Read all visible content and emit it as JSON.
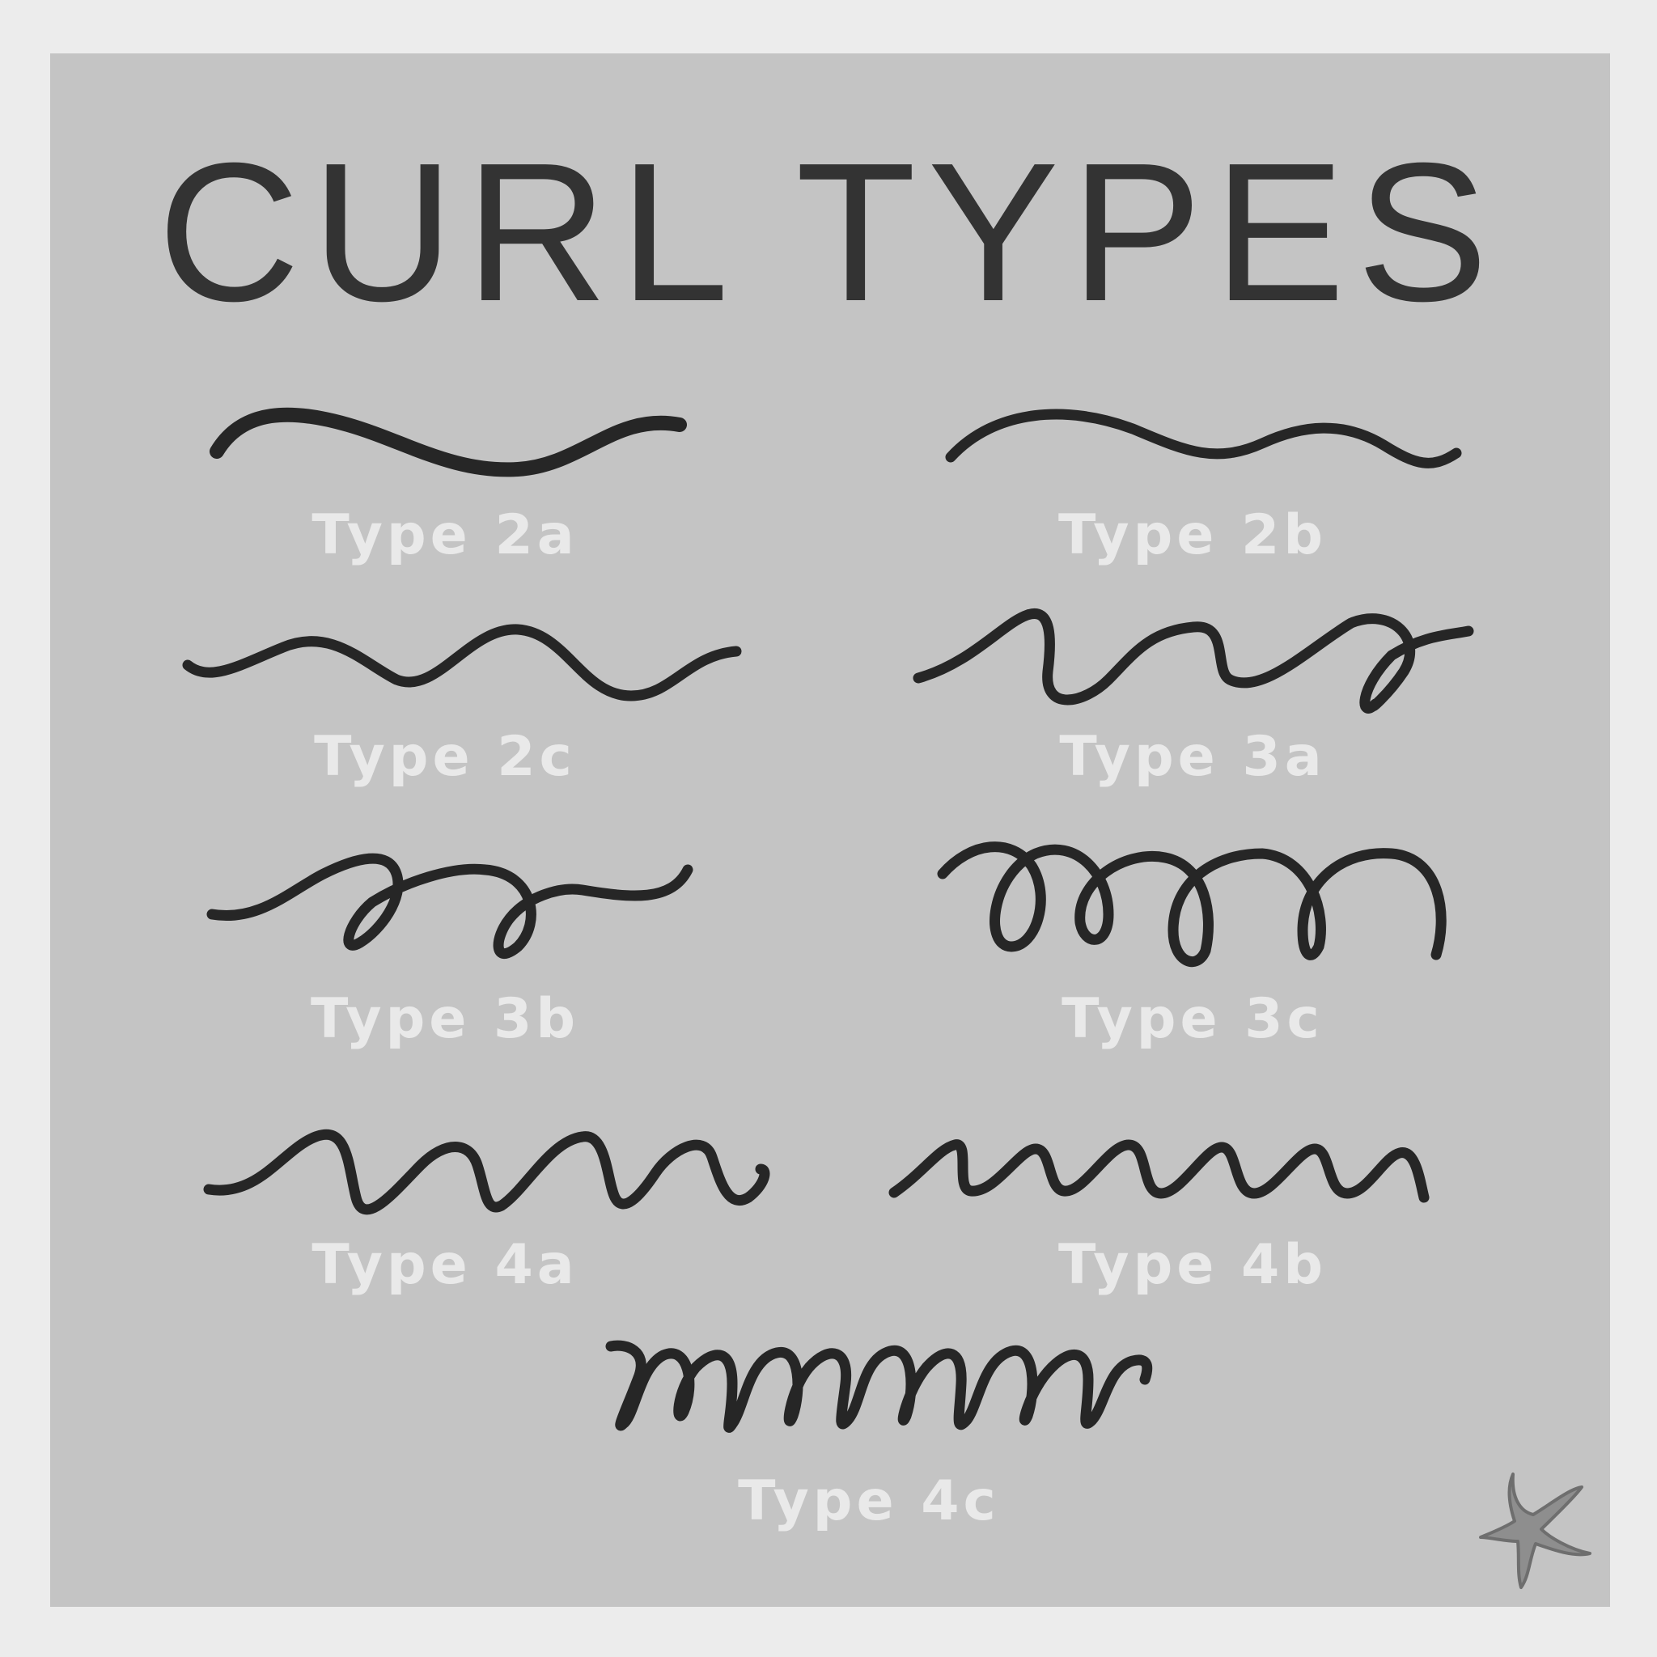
{
  "title": "CURL TYPES",
  "colors": {
    "page_background": "#ececec",
    "panel_background": "#c4c4c4",
    "title_text": "#333333",
    "strokes": "#262626",
    "label_text": "#e9e9e9",
    "starfish": "#8e8e8e"
  },
  "curl_types": [
    {
      "id": "2a",
      "label": "Type 2a",
      "shape": "gentle-wave"
    },
    {
      "id": "2b",
      "label": "Type 2b",
      "shape": "s-wave"
    },
    {
      "id": "2c",
      "label": "Type 2c",
      "shape": "defined-wave"
    },
    {
      "id": "3a",
      "label": "Type 3a",
      "shape": "loose-loops"
    },
    {
      "id": "3b",
      "label": "Type 3b",
      "shape": "springy-loops"
    },
    {
      "id": "3c",
      "label": "Type 3c",
      "shape": "tight-loops"
    },
    {
      "id": "4a",
      "label": "Type 4a",
      "shape": "s-coil"
    },
    {
      "id": "4b",
      "label": "Type 4b",
      "shape": "z-zigzag"
    },
    {
      "id": "4c",
      "label": "Type 4c",
      "shape": "tight-coil"
    }
  ],
  "decoration": {
    "icon": "starfish-icon"
  }
}
